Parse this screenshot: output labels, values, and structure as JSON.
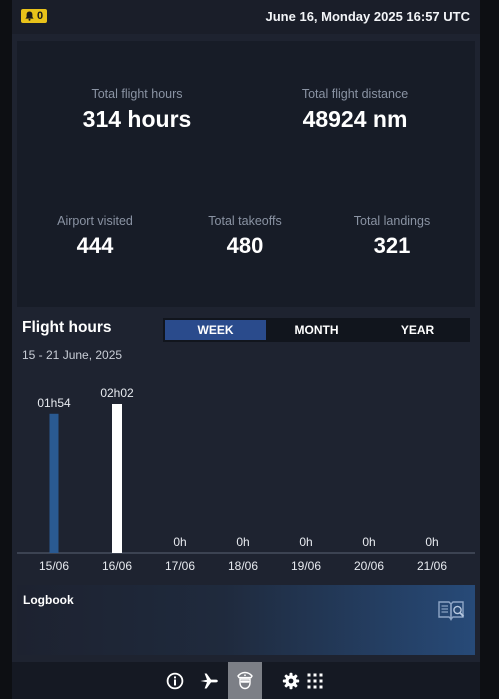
{
  "topbar": {
    "notification_count": "0",
    "datetime": "June 16, Monday 2025 16:57 UTC"
  },
  "stats": {
    "total_flight_hours": {
      "label": "Total flight hours",
      "value": "314 hours"
    },
    "total_flight_distance": {
      "label": "Total flight distance",
      "value": "48924 nm"
    },
    "airport_visited": {
      "label": "Airport visited",
      "value": "444"
    },
    "total_takeoffs": {
      "label": "Total takeoffs",
      "value": "480"
    },
    "total_landings": {
      "label": "Total landings",
      "value": "321"
    }
  },
  "flight_hours": {
    "title": "Flight hours",
    "range": "15 - 21 June, 2025",
    "tabs": [
      {
        "label": "WEEK",
        "active": true
      },
      {
        "label": "MONTH",
        "active": false
      },
      {
        "label": "YEAR",
        "active": false
      }
    ]
  },
  "chart_data": {
    "type": "bar",
    "categories": [
      "15/06",
      "16/06",
      "17/06",
      "18/06",
      "19/06",
      "20/06",
      "21/06"
    ],
    "values": [
      114,
      122,
      0,
      0,
      0,
      0,
      0
    ],
    "data_labels": [
      "01h54",
      "02h02",
      "0h",
      "0h",
      "0h",
      "0h",
      "0h"
    ],
    "highlight_index": 1,
    "colors": {
      "bar": "#2a5a92",
      "highlight": "#ffffff"
    },
    "ylim": [
      0,
      122
    ]
  },
  "logbook": {
    "title": "Logbook",
    "icon": "logbook-search-icon"
  },
  "nav": {
    "items": [
      {
        "icon": "info-icon",
        "active": false
      },
      {
        "icon": "airplane-icon",
        "active": false
      },
      {
        "icon": "pilot-icon",
        "active": true
      },
      {
        "icon": "gear-icon",
        "active": false
      },
      {
        "icon": "grid-icon",
        "active": false
      }
    ]
  }
}
